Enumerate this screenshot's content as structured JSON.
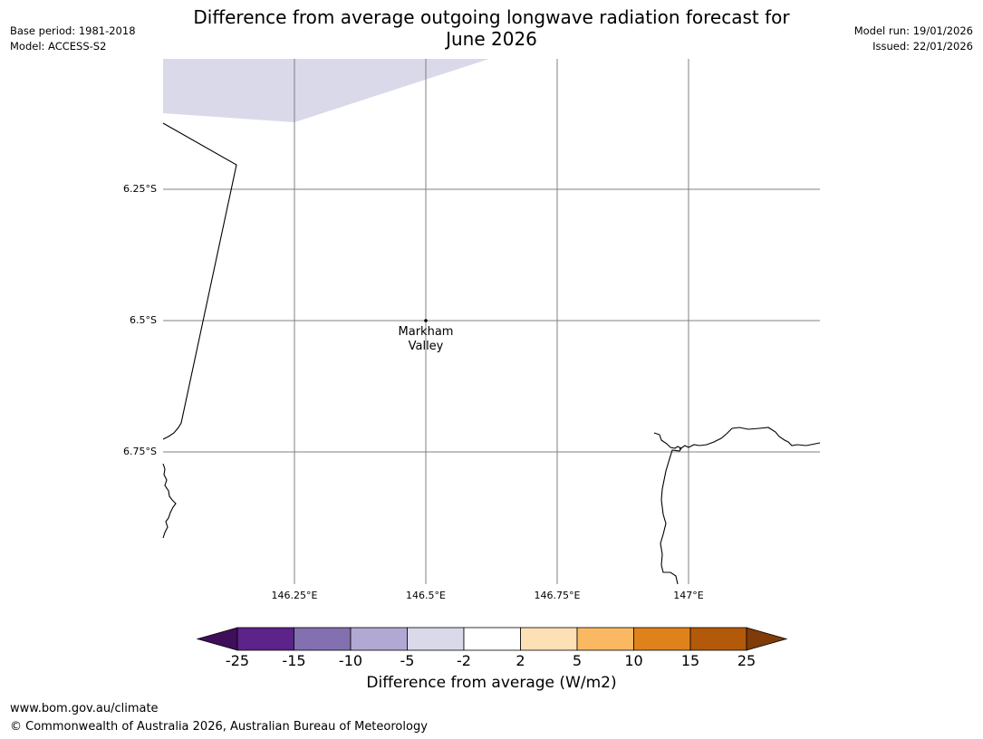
{
  "header": {
    "base_period": "Base period: 1981-2018",
    "model": "Model: ACCESS-S2",
    "model_run": "Model run: 19/01/2026",
    "issued": "Issued: 22/01/2026",
    "title_line1": "Difference from average outgoing longwave radiation forecast for",
    "title_line2": "June 2026"
  },
  "map": {
    "lon_ticks": [
      "146.25°E",
      "146.5°E",
      "146.75°E",
      "147°E"
    ],
    "lat_ticks": [
      "6.25°S",
      "6.5°S",
      "6.75°S"
    ],
    "place_line1": "Markham",
    "place_line2": "Valley",
    "region_fill_bin": "-5 to -2"
  },
  "colorbar": {
    "ticks": [
      "-25",
      "-15",
      "-10",
      "-5",
      "-2",
      "2",
      "5",
      "10",
      "15",
      "25"
    ],
    "colors": [
      "#3f0f5a",
      "#5c2389",
      "#8270b0",
      "#b1a9d3",
      "#d9d9ea",
      "#ffffff",
      "#fde0b5",
      "#fbb862",
      "#e0821c",
      "#b3590a",
      "#7f3b08"
    ],
    "label": "Difference from average (W/m2)"
  },
  "footer": {
    "url": "www.bom.gov.au/climate",
    "copyright": "© Commonwealth of Australia 2026, Australian Bureau of Meteorology"
  }
}
